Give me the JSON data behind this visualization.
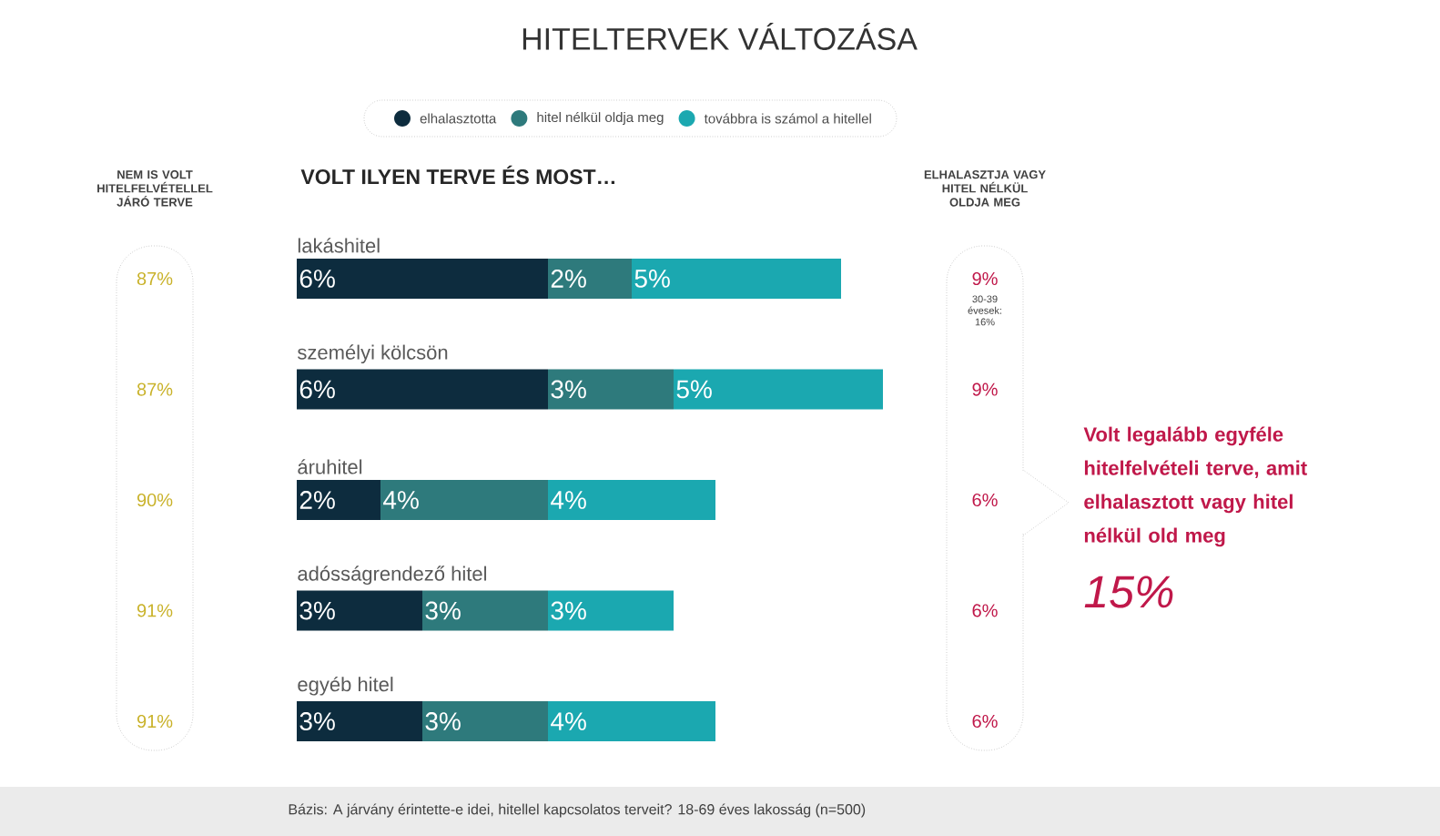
{
  "chart_data": [
    {
      "type": "other",
      "title": "NEM IS VOLT HITELFELVÉTELLEL JÁRÓ TERVE",
      "annotations": [
        "87%",
        "87%",
        "90%",
        "91%",
        "91%"
      ],
      "color": "#c9b22a"
    },
    {
      "type": "bar",
      "orientation": "horizontal",
      "stacked": true,
      "data_labels": true,
      "legend": "top",
      "title": "HITELTERVEK VÁLTOZÁSA",
      "subtitle": "VOLT ILYEN TERVE ÉS MOST…",
      "categories": [
        "lakáshitel",
        "személyi kölcsön",
        "áruhitel",
        "adósságrendező hitel",
        "egyéb hitel"
      ],
      "series": [
        {
          "name": "elhalasztotta",
          "color": "#0d2c3e",
          "values": [
            6,
            6,
            2,
            3,
            3
          ],
          "value_labels": [
            "6%",
            "6%",
            "2%",
            "3%",
            "3%"
          ]
        },
        {
          "name": "hitel nélkül oldja meg",
          "color": "#2e7a7c",
          "values": [
            2,
            3,
            4,
            3,
            3
          ],
          "value_labels": [
            "2%",
            "3%",
            "4%",
            "3%",
            "3%"
          ]
        },
        {
          "name": "továbbra is számol a hitellel",
          "color": "#1ba8b0",
          "values": [
            5,
            5,
            4,
            3,
            4
          ],
          "value_labels": [
            "5%",
            "5%",
            "4%",
            "3%",
            "4%"
          ]
        }
      ],
      "annotations": [
        "Bázis: A járvány érintette-e idei, hitellel kapcsolatos terveit? 18-69 éves lakosság (n=500)"
      ]
    },
    {
      "type": "other",
      "title": "ELHALASZTJA VAGY HITEL NÉLKÜL OLDJA MEG",
      "color": "#c0184a",
      "annotations": [
        "9%",
        "9%",
        "6%",
        "6%",
        "6%",
        "30-39 évesek: 16%",
        "Volt legalább egyféle hitelfelvételi terve, amit elhalasztott vagy hitel nélkül old meg",
        "15%"
      ]
    }
  ]
}
